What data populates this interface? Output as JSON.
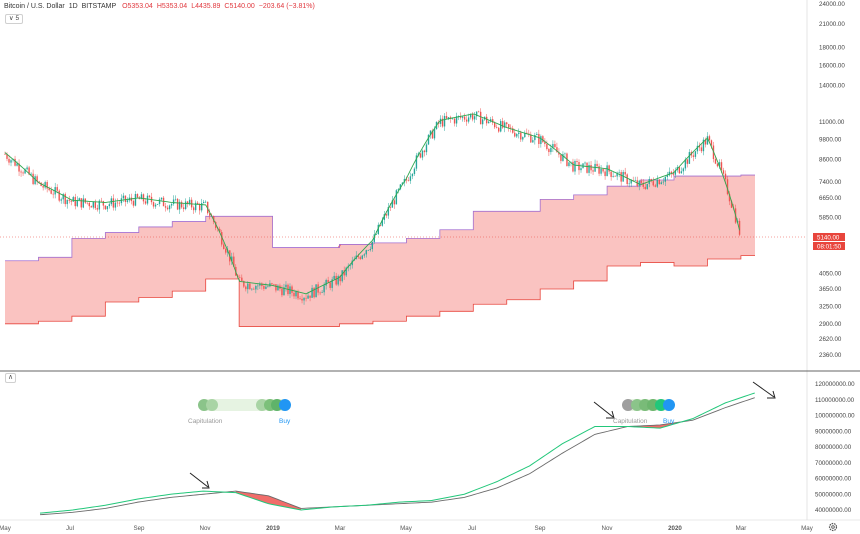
{
  "header": {
    "symbol": "Bitcoin / U.S. Dollar",
    "interval": "1D",
    "exchange": "BITSTAMP",
    "open": "O5353.04",
    "high": "H5353.04",
    "low": "L4435.89",
    "close": "C5140.00",
    "change": "−203.64 (−3.81%)",
    "indicator_count": "5",
    "collapse_glyph": "∧",
    "expand_glyph": "∨"
  },
  "price_axis": {
    "ticks": [
      24000,
      21000,
      18000,
      16000,
      14000,
      11000,
      9800,
      8600,
      7400,
      6650,
      5850,
      4050,
      3650,
      3250,
      2900,
      2620,
      2360
    ],
    "labels": [
      "24000.00",
      "21000.00",
      "18000.00",
      "16000.00",
      "14000.00",
      "11000.00",
      "9800.00",
      "8600.00",
      "7400.00",
      "6650.00",
      "5850.00",
      "4050.00",
      "3650.00",
      "3250.00",
      "2900.00",
      "2620.00",
      "2360.00"
    ],
    "last_price_label": "5140.00",
    "countdown_label": "08:01:50",
    "last_price_color": "#e8453c",
    "scale": "log"
  },
  "lower_axis": {
    "ticks": [
      120000000,
      110000000,
      100000000,
      90000000,
      80000000,
      70000000,
      60000000,
      50000000,
      40000000
    ],
    "labels": [
      "120000000.00",
      "110000000.00",
      "100000000.00",
      "90000000.00",
      "80000000.00",
      "70000000.00",
      "60000000.00",
      "50000000.00",
      "40000000.00"
    ]
  },
  "time_axis": {
    "labels": [
      "May",
      "Jul",
      "Sep",
      "Nov",
      "2019",
      "Mar",
      "May",
      "Jul",
      "Sep",
      "Nov",
      "2020",
      "Mar",
      "May"
    ]
  },
  "indicator_widget_left": {
    "label_left": "Capitulation",
    "label_right": "Buy"
  },
  "indicator_widget_right": {
    "label_left": "Capitulation",
    "label_right": "Buy"
  },
  "settings_icon": "gear-icon",
  "colors": {
    "band_fill": "#f9b9b6",
    "band_edge_red": "#e8453c",
    "band_edge_purple": "#a36fd0",
    "highlight_fill": "#f05a5a",
    "ma_green": "#2fa84f",
    "candle_up": "#26a69a",
    "candle_down": "#ef5350",
    "hashribbon_fast": "#22c77a",
    "hashribbon_slow": "#6b6b6b",
    "widget_blue": "#2196f3"
  },
  "chart_data": [
    {
      "type": "line",
      "title": "Bitcoin / U.S. Dollar, 1D, BITSTAMP",
      "scale": "log",
      "ylim": [
        2200,
        25000
      ],
      "x": [
        "2018-05",
        "2018-06",
        "2018-07",
        "2018-08",
        "2018-09",
        "2018-10",
        "2018-11",
        "2018-12",
        "2019-01",
        "2019-02",
        "2019-03",
        "2019-04",
        "2019-05",
        "2019-06",
        "2019-07",
        "2019-08",
        "2019-09",
        "2019-10",
        "2019-11",
        "2019-12",
        "2020-01",
        "2020-02",
        "2020-03"
      ],
      "series": [
        {
          "values": [
            8900,
            7300,
            6500,
            6400,
            6600,
            6400,
            6300,
            3800,
            3700,
            3500,
            3900,
            5000,
            7500,
            11000,
            11500,
            10500,
            9800,
            8200,
            8000,
            7200,
            7800,
            9800,
            5140
          ]
        },
        {
          "values": [
            4400,
            4500,
            5100,
            5300,
            5500,
            5700,
            5900,
            5900,
            4800,
            4800,
            4900,
            4950,
            5100,
            5400,
            6100,
            6100,
            6600,
            6800,
            7200,
            7500,
            7700,
            7700,
            7750
          ]
        },
        {
          "values": [
            2900,
            2950,
            3050,
            3350,
            3450,
            3600,
            3900,
            2850,
            2850,
            2850,
            2900,
            2950,
            3050,
            3150,
            3300,
            3400,
            3650,
            3850,
            4250,
            4350,
            4250,
            4450,
            4550
          ]
        }
      ]
    },
    {
      "type": "line",
      "ylim": [
        35000000,
        125000000
      ],
      "x": [
        "2018-05",
        "2018-06",
        "2018-07",
        "2018-08",
        "2018-09",
        "2018-10",
        "2018-11",
        "2018-12",
        "2019-01",
        "2019-02",
        "2019-03",
        "2019-04",
        "2019-05",
        "2019-06",
        "2019-07",
        "2019-08",
        "2019-09",
        "2019-10",
        "2019-11",
        "2019-12",
        "2020-01",
        "2020-02",
        "2020-03"
      ],
      "series": [
        {
          "values": [
            38000000,
            40000000,
            43000000,
            47000000,
            50000000,
            52000000,
            51000000,
            44000000,
            40000000,
            42000000,
            43000000,
            45000000,
            46000000,
            50000000,
            58000000,
            68000000,
            82000000,
            93000000,
            93000000,
            92000000,
            98000000,
            108000000,
            115000000
          ]
        },
        {
          "values": [
            37000000,
            38500000,
            41000000,
            45000000,
            48000000,
            50000000,
            52000000,
            49000000,
            41000000,
            42000000,
            43000000,
            44000000,
            45000000,
            48000000,
            54000000,
            63000000,
            76000000,
            88000000,
            93000000,
            94000000,
            97000000,
            105000000,
            112000000
          ]
        }
      ]
    }
  ]
}
